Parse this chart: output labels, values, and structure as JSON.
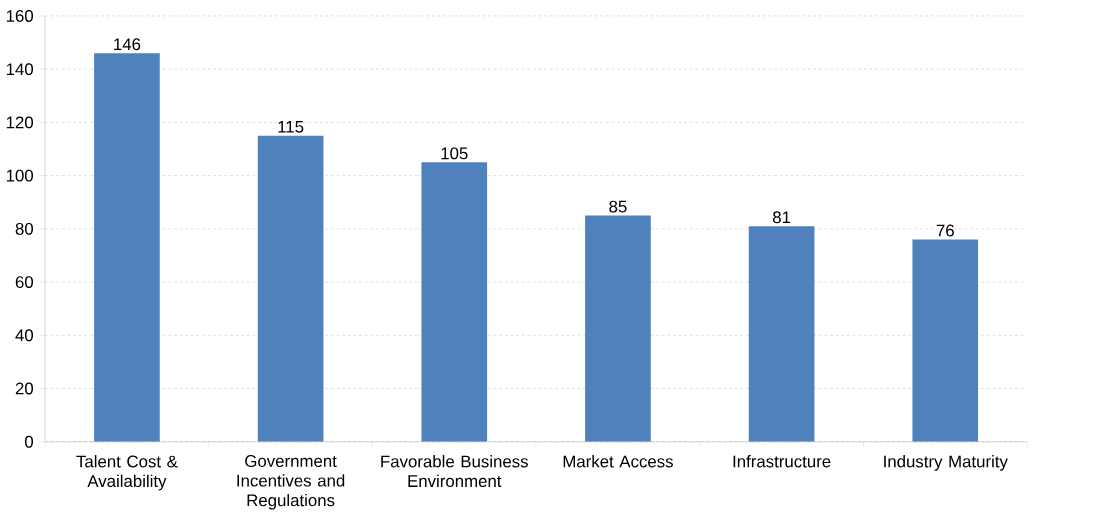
{
  "chart_data": {
    "type": "bar",
    "categories": [
      "Talent Cost & Availability",
      "Government Incentives and Regulations",
      "Favorable Business Environment",
      "Market Access",
      "Infrastructure",
      "Industry Maturity"
    ],
    "values": [
      146,
      115,
      105,
      85,
      81,
      76
    ],
    "color": "#4f81bd",
    "ylim": [
      0,
      160
    ],
    "yticks": [
      0,
      20,
      40,
      60,
      80,
      100,
      120,
      140,
      160
    ],
    "grid": "y",
    "data_labels": true
  }
}
